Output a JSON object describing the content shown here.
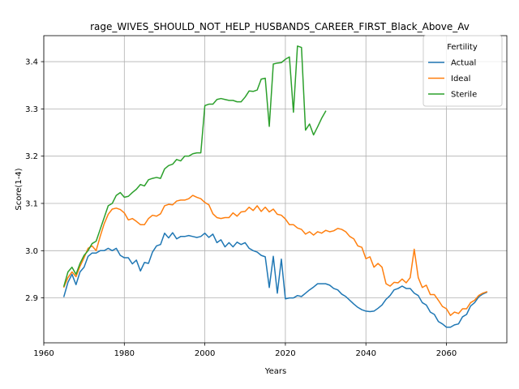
{
  "chart_data": {
    "type": "line",
    "title": "rage_WIVES_SHOULD_NOT_HELP_HUSBANDS_CAREER_FIRST_Black_Above_Av",
    "xlabel": "Years",
    "ylabel": "Score(1-4)",
    "xlim": [
      1960,
      2075
    ],
    "ylim": [
      2.805,
      3.455
    ],
    "xticks": [
      1960,
      1980,
      2000,
      2020,
      2040,
      2060
    ],
    "yticks": [
      2.9,
      3.0,
      3.1,
      3.2,
      3.3,
      3.4
    ],
    "xtick_labels": [
      "1960",
      "1980",
      "2000",
      "2020",
      "2040",
      "2060"
    ],
    "ytick_labels": [
      "2.9",
      "3.0",
      "3.1",
      "3.2",
      "3.3",
      "3.4"
    ],
    "grid": true,
    "legend": {
      "title": "Fertility",
      "placement": "top-right"
    },
    "series": [
      {
        "name": "Actual",
        "color": "#1f77b4",
        "points": [
          [
            1965,
            2.903
          ],
          [
            1966,
            2.933
          ],
          [
            1967,
            2.95
          ],
          [
            1968,
            2.928
          ],
          [
            1969,
            2.955
          ],
          [
            1970,
            2.965
          ],
          [
            1971,
            2.988
          ],
          [
            1972,
            2.995
          ],
          [
            1973,
            2.995
          ],
          [
            1974,
            3.0
          ],
          [
            1975,
            3.0
          ],
          [
            1976,
            3.005
          ],
          [
            1977,
            3.0
          ],
          [
            1978,
            3.005
          ],
          [
            1979,
            2.99
          ],
          [
            1980,
            2.985
          ],
          [
            1981,
            2.985
          ],
          [
            1982,
            2.972
          ],
          [
            1983,
            2.98
          ],
          [
            1984,
            2.957
          ],
          [
            1985,
            2.975
          ],
          [
            1986,
            2.973
          ],
          [
            1987,
            2.997
          ],
          [
            1988,
            3.01
          ],
          [
            1989,
            3.013
          ],
          [
            1990,
            3.037
          ],
          [
            1991,
            3.027
          ],
          [
            1992,
            3.038
          ],
          [
            1993,
            3.025
          ],
          [
            1994,
            3.03
          ],
          [
            1995,
            3.03
          ],
          [
            1996,
            3.032
          ],
          [
            1997,
            3.03
          ],
          [
            1998,
            3.028
          ],
          [
            1999,
            3.03
          ],
          [
            2000,
            3.037
          ],
          [
            2001,
            3.028
          ],
          [
            2002,
            3.035
          ],
          [
            2003,
            3.017
          ],
          [
            2004,
            3.023
          ],
          [
            2005,
            3.008
          ],
          [
            2006,
            3.017
          ],
          [
            2007,
            3.008
          ],
          [
            2008,
            3.018
          ],
          [
            2009,
            3.013
          ],
          [
            2010,
            3.017
          ],
          [
            2011,
            3.005
          ],
          [
            2012,
            3.0
          ],
          [
            2013,
            2.997
          ],
          [
            2014,
            2.99
          ],
          [
            2015,
            2.987
          ],
          [
            2016,
            2.922
          ],
          [
            2017,
            2.988
          ],
          [
            2018,
            2.91
          ],
          [
            2019,
            2.982
          ],
          [
            2020,
            2.898
          ],
          [
            2021,
            2.9
          ],
          [
            2022,
            2.9
          ],
          [
            2023,
            2.905
          ],
          [
            2024,
            2.903
          ],
          [
            2025,
            2.91
          ],
          [
            2026,
            2.917
          ],
          [
            2027,
            2.923
          ],
          [
            2028,
            2.93
          ],
          [
            2029,
            2.93
          ],
          [
            2030,
            2.93
          ],
          [
            2031,
            2.927
          ],
          [
            2032,
            2.92
          ],
          [
            2033,
            2.917
          ],
          [
            2034,
            2.908
          ],
          [
            2035,
            2.903
          ],
          [
            2036,
            2.895
          ],
          [
            2037,
            2.887
          ],
          [
            2038,
            2.88
          ],
          [
            2039,
            2.875
          ],
          [
            2040,
            2.872
          ],
          [
            2041,
            2.871
          ],
          [
            2042,
            2.872
          ],
          [
            2043,
            2.878
          ],
          [
            2044,
            2.885
          ],
          [
            2045,
            2.897
          ],
          [
            2046,
            2.905
          ],
          [
            2047,
            2.917
          ],
          [
            2048,
            2.92
          ],
          [
            2049,
            2.925
          ],
          [
            2050,
            2.92
          ],
          [
            2051,
            2.92
          ],
          [
            2052,
            2.91
          ],
          [
            2053,
            2.905
          ],
          [
            2054,
            2.89
          ],
          [
            2055,
            2.885
          ],
          [
            2056,
            2.87
          ],
          [
            2057,
            2.865
          ],
          [
            2058,
            2.85
          ],
          [
            2059,
            2.845
          ],
          [
            2060,
            2.838
          ],
          [
            2061,
            2.838
          ],
          [
            2062,
            2.843
          ],
          [
            2063,
            2.845
          ],
          [
            2064,
            2.86
          ],
          [
            2065,
            2.865
          ],
          [
            2066,
            2.883
          ],
          [
            2067,
            2.89
          ],
          [
            2068,
            2.902
          ],
          [
            2069,
            2.908
          ],
          [
            2070,
            2.912
          ]
        ]
      },
      {
        "name": "Ideal",
        "color": "#ff7f0e",
        "points": [
          [
            1965,
            2.923
          ],
          [
            1966,
            2.943
          ],
          [
            1967,
            2.955
          ],
          [
            1968,
            2.945
          ],
          [
            1969,
            2.967
          ],
          [
            1970,
            2.985
          ],
          [
            1971,
            3.005
          ],
          [
            1972,
            3.01
          ],
          [
            1973,
            3.0
          ],
          [
            1974,
            3.03
          ],
          [
            1975,
            3.057
          ],
          [
            1976,
            3.077
          ],
          [
            1977,
            3.088
          ],
          [
            1978,
            3.09
          ],
          [
            1979,
            3.087
          ],
          [
            1980,
            3.08
          ],
          [
            1981,
            3.065
          ],
          [
            1982,
            3.068
          ],
          [
            1983,
            3.062
          ],
          [
            1984,
            3.055
          ],
          [
            1985,
            3.055
          ],
          [
            1986,
            3.068
          ],
          [
            1987,
            3.075
          ],
          [
            1988,
            3.073
          ],
          [
            1989,
            3.078
          ],
          [
            1990,
            3.095
          ],
          [
            1991,
            3.098
          ],
          [
            1992,
            3.097
          ],
          [
            1993,
            3.105
          ],
          [
            1994,
            3.107
          ],
          [
            1995,
            3.107
          ],
          [
            1996,
            3.11
          ],
          [
            1997,
            3.117
          ],
          [
            1998,
            3.113
          ],
          [
            1999,
            3.11
          ],
          [
            2000,
            3.102
          ],
          [
            2001,
            3.097
          ],
          [
            2002,
            3.078
          ],
          [
            2003,
            3.07
          ],
          [
            2004,
            3.068
          ],
          [
            2005,
            3.07
          ],
          [
            2006,
            3.07
          ],
          [
            2007,
            3.08
          ],
          [
            2008,
            3.073
          ],
          [
            2009,
            3.082
          ],
          [
            2010,
            3.083
          ],
          [
            2011,
            3.092
          ],
          [
            2012,
            3.085
          ],
          [
            2013,
            3.095
          ],
          [
            2014,
            3.083
          ],
          [
            2015,
            3.092
          ],
          [
            2016,
            3.082
          ],
          [
            2017,
            3.088
          ],
          [
            2018,
            3.077
          ],
          [
            2019,
            3.075
          ],
          [
            2020,
            3.067
          ],
          [
            2021,
            3.055
          ],
          [
            2022,
            3.055
          ],
          [
            2023,
            3.048
          ],
          [
            2024,
            3.045
          ],
          [
            2025,
            3.035
          ],
          [
            2026,
            3.04
          ],
          [
            2027,
            3.033
          ],
          [
            2028,
            3.04
          ],
          [
            2029,
            3.037
          ],
          [
            2030,
            3.043
          ],
          [
            2031,
            3.04
          ],
          [
            2032,
            3.042
          ],
          [
            2033,
            3.047
          ],
          [
            2034,
            3.045
          ],
          [
            2035,
            3.04
          ],
          [
            2036,
            3.03
          ],
          [
            2037,
            3.025
          ],
          [
            2038,
            3.01
          ],
          [
            2039,
            3.007
          ],
          [
            2040,
            2.983
          ],
          [
            2041,
            2.987
          ],
          [
            2042,
            2.965
          ],
          [
            2043,
            2.973
          ],
          [
            2044,
            2.965
          ],
          [
            2045,
            2.93
          ],
          [
            2046,
            2.925
          ],
          [
            2047,
            2.933
          ],
          [
            2048,
            2.932
          ],
          [
            2049,
            2.94
          ],
          [
            2050,
            2.932
          ],
          [
            2051,
            2.943
          ],
          [
            2052,
            3.003
          ],
          [
            2053,
            2.943
          ],
          [
            2054,
            2.922
          ],
          [
            2055,
            2.927
          ],
          [
            2056,
            2.907
          ],
          [
            2057,
            2.907
          ],
          [
            2058,
            2.895
          ],
          [
            2059,
            2.882
          ],
          [
            2060,
            2.877
          ],
          [
            2061,
            2.863
          ],
          [
            2062,
            2.87
          ],
          [
            2063,
            2.867
          ],
          [
            2064,
            2.877
          ],
          [
            2065,
            2.877
          ],
          [
            2066,
            2.89
          ],
          [
            2067,
            2.895
          ],
          [
            2068,
            2.905
          ],
          [
            2069,
            2.91
          ],
          [
            2070,
            2.913
          ]
        ]
      },
      {
        "name": "Sterile",
        "color": "#2ca02c",
        "points": [
          [
            1965,
            2.925
          ],
          [
            1966,
            2.955
          ],
          [
            1967,
            2.965
          ],
          [
            1968,
            2.95
          ],
          [
            1969,
            2.973
          ],
          [
            1970,
            2.99
          ],
          [
            1971,
            3.0
          ],
          [
            1972,
            3.015
          ],
          [
            1973,
            3.02
          ],
          [
            1974,
            3.045
          ],
          [
            1975,
            3.07
          ],
          [
            1976,
            3.095
          ],
          [
            1977,
            3.1
          ],
          [
            1978,
            3.117
          ],
          [
            1979,
            3.123
          ],
          [
            1980,
            3.113
          ],
          [
            1981,
            3.115
          ],
          [
            1982,
            3.123
          ],
          [
            1983,
            3.13
          ],
          [
            1984,
            3.14
          ],
          [
            1985,
            3.137
          ],
          [
            1986,
            3.15
          ],
          [
            1987,
            3.153
          ],
          [
            1988,
            3.155
          ],
          [
            1989,
            3.153
          ],
          [
            1990,
            3.173
          ],
          [
            1991,
            3.18
          ],
          [
            1992,
            3.183
          ],
          [
            1993,
            3.193
          ],
          [
            1994,
            3.19
          ],
          [
            1995,
            3.2
          ],
          [
            1996,
            3.2
          ],
          [
            1997,
            3.205
          ],
          [
            1998,
            3.207
          ],
          [
            1999,
            3.207
          ],
          [
            2000,
            3.307
          ],
          [
            2001,
            3.31
          ],
          [
            2002,
            3.31
          ],
          [
            2003,
            3.32
          ],
          [
            2004,
            3.322
          ],
          [
            2005,
            3.32
          ],
          [
            2006,
            3.318
          ],
          [
            2007,
            3.318
          ],
          [
            2008,
            3.315
          ],
          [
            2009,
            3.315
          ],
          [
            2010,
            3.325
          ],
          [
            2011,
            3.338
          ],
          [
            2012,
            3.337
          ],
          [
            2013,
            3.34
          ],
          [
            2014,
            3.363
          ],
          [
            2015,
            3.365
          ],
          [
            2016,
            3.263
          ],
          [
            2017,
            3.395
          ],
          [
            2018,
            3.397
          ],
          [
            2019,
            3.398
          ],
          [
            2020,
            3.405
          ],
          [
            2021,
            3.41
          ],
          [
            2022,
            3.293
          ],
          [
            2023,
            3.433
          ],
          [
            2024,
            3.43
          ],
          [
            2025,
            3.255
          ],
          [
            2026,
            3.268
          ],
          [
            2027,
            3.245
          ],
          [
            2028,
            3.262
          ],
          [
            2029,
            3.28
          ],
          [
            2030,
            3.295
          ]
        ]
      }
    ]
  }
}
